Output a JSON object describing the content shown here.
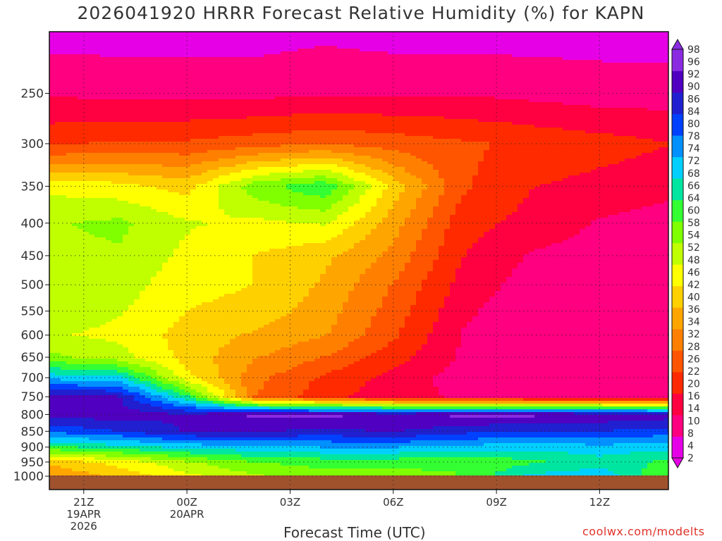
{
  "title": "2026041920 HRRR Forecast Relative Humidity (%) for KAPN",
  "xlabel": "Forecast Time (UTC)",
  "credit": "coolwx.com/modelts",
  "colors": {
    "scale": [
      "#e600e6",
      "#ff0080",
      "#ff0040",
      "#ff2a00",
      "#ff5500",
      "#ff8000",
      "#ffa500",
      "#ffd000",
      "#ffff00",
      "#c0ff00",
      "#7fff00",
      "#33ff33",
      "#00e6a0",
      "#00d0ff",
      "#0090ff",
      "#0040ff",
      "#2020d0",
      "#5000c0",
      "#8a2be2"
    ],
    "ground": "#a0522d"
  },
  "chart_data": {
    "type": "heatmap",
    "title": "2026041920 HRRR Forecast Relative Humidity (%) for KAPN",
    "xlabel": "Forecast Time (UTC)",
    "ylabel": "",
    "x_ticks": [
      {
        "hour": 1,
        "lines": [
          "21Z",
          "19APR",
          "2026"
        ]
      },
      {
        "hour": 4,
        "lines": [
          "00Z",
          "20APR"
        ]
      },
      {
        "hour": 7,
        "lines": [
          "03Z"
        ]
      },
      {
        "hour": 10,
        "lines": [
          "06Z"
        ]
      },
      {
        "hour": 13,
        "lines": [
          "09Z"
        ]
      },
      {
        "hour": 16,
        "lines": [
          "12Z"
        ]
      }
    ],
    "xlim": [
      0,
      18
    ],
    "y_scale": "log-pressure",
    "y_ticks": [
      250,
      300,
      350,
      400,
      450,
      500,
      550,
      600,
      650,
      700,
      750,
      800,
      850,
      900,
      950,
      1000
    ],
    "ylim": [
      200,
      1000
    ],
    "colorbar_labels": [
      98,
      96,
      92,
      90,
      86,
      84,
      80,
      78,
      74,
      72,
      68,
      66,
      64,
      60,
      58,
      54,
      52,
      48,
      46,
      42,
      40,
      36,
      34,
      32,
      28,
      26,
      22,
      20,
      16,
      14,
      10,
      8,
      4,
      2
    ],
    "grid": true,
    "hours": [
      0,
      2,
      4,
      6,
      8,
      10,
      12,
      14,
      16,
      18
    ],
    "levels": [
      200,
      250,
      300,
      350,
      400,
      450,
      500,
      550,
      600,
      650,
      700,
      750,
      800,
      850,
      900,
      950,
      1000
    ],
    "rh": [
      [
        3,
        3,
        3,
        3,
        4,
        3,
        3,
        3,
        3,
        3
      ],
      [
        10,
        9,
        9,
        9,
        10,
        10,
        10,
        9,
        8,
        8
      ],
      [
        20,
        22,
        22,
        24,
        26,
        24,
        22,
        20,
        18,
        16
      ],
      [
        46,
        44,
        40,
        56,
        62,
        40,
        22,
        16,
        14,
        12
      ],
      [
        52,
        54,
        48,
        46,
        48,
        34,
        18,
        14,
        10,
        8
      ],
      [
        50,
        52,
        46,
        42,
        38,
        30,
        16,
        10,
        8,
        8
      ],
      [
        48,
        50,
        44,
        42,
        36,
        26,
        14,
        8,
        6,
        6
      ],
      [
        50,
        48,
        42,
        40,
        34,
        24,
        12,
        6,
        6,
        6
      ],
      [
        48,
        46,
        40,
        36,
        32,
        22,
        10,
        6,
        6,
        6
      ],
      [
        54,
        50,
        40,
        32,
        26,
        18,
        10,
        6,
        6,
        6
      ],
      [
        72,
        70,
        44,
        28,
        20,
        14,
        8,
        6,
        6,
        6
      ],
      [
        92,
        90,
        64,
        26,
        18,
        12,
        10,
        8,
        8,
        8
      ],
      [
        92,
        92,
        90,
        96,
        96,
        94,
        96,
        96,
        94,
        92
      ],
      [
        80,
        84,
        90,
        90,
        88,
        90,
        86,
        84,
        84,
        82
      ],
      [
        62,
        66,
        70,
        72,
        74,
        74,
        72,
        70,
        72,
        70
      ],
      [
        38,
        44,
        52,
        58,
        60,
        60,
        58,
        62,
        66,
        62
      ],
      [
        32,
        38,
        46,
        52,
        56,
        56,
        58,
        70,
        72,
        58
      ]
    ]
  }
}
